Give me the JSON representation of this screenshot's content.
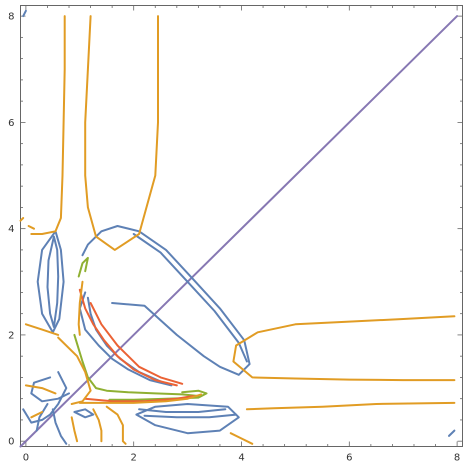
{
  "chart_data": {
    "type": "line",
    "title": "",
    "xlabel": "",
    "ylabel": "",
    "xlim": [
      -0.1,
      8.1
    ],
    "ylim": [
      -0.1,
      8.2
    ],
    "x_ticks": [
      0,
      2,
      4,
      6,
      8
    ],
    "y_ticks": [
      0,
      2,
      4,
      6,
      8
    ],
    "x_tick_labels": [
      "0",
      "2",
      "4",
      "6",
      "8"
    ],
    "y_tick_labels": [
      "0",
      "2",
      "4",
      "6",
      "8"
    ],
    "grid": false,
    "legend": "none",
    "colors": {
      "blue": "#5e81b5",
      "orange": "#e19c24",
      "green": "#8fb032",
      "red": "#eb6235",
      "purple": "#8778b3",
      "frame": "#666666"
    },
    "series": [
      {
        "color": "purple",
        "segments": [
          [
            [
              -0.1,
              -0.1
            ],
            [
              8.0,
              8.0
            ]
          ]
        ]
      },
      {
        "color": "blue",
        "segments": [
          [
            [
              0.55,
              3.95
            ],
            [
              0.3,
              3.6
            ],
            [
              0.22,
              3.0
            ],
            [
              0.3,
              2.4
            ],
            [
              0.5,
              2.05
            ],
            [
              0.62,
              2.3
            ],
            [
              0.7,
              3.0
            ],
            [
              0.65,
              3.6
            ],
            [
              0.55,
              3.95
            ]
          ],
          [
            [
              0.52,
              3.85
            ],
            [
              0.42,
              3.4
            ],
            [
              0.4,
              2.9
            ],
            [
              0.45,
              2.4
            ],
            [
              0.52,
              2.15
            ],
            [
              0.58,
              2.6
            ],
            [
              0.6,
              3.1
            ],
            [
              0.58,
              3.6
            ],
            [
              0.52,
              3.85
            ]
          ],
          [
            [
              1.1,
              2.8
            ],
            [
              1.0,
              2.5
            ],
            [
              1.1,
              2.1
            ],
            [
              1.35,
              1.8
            ],
            [
              1.6,
              1.55
            ],
            [
              1.9,
              1.35
            ],
            [
              2.3,
              1.15
            ],
            [
              2.7,
              1.05
            ]
          ],
          [
            [
              1.15,
              2.7
            ],
            [
              1.2,
              2.4
            ],
            [
              1.3,
              2.1
            ],
            [
              1.5,
              1.8
            ],
            [
              1.75,
              1.55
            ],
            [
              2.1,
              1.3
            ],
            [
              2.6,
              1.08
            ]
          ],
          [
            [
              1.05,
              3.5
            ],
            [
              1.15,
              3.7
            ],
            [
              1.4,
              3.95
            ],
            [
              1.7,
              4.05
            ],
            [
              2.1,
              3.95
            ],
            [
              2.6,
              3.6
            ],
            [
              3.1,
              3.05
            ],
            [
              3.6,
              2.5
            ],
            [
              4.05,
              1.9
            ],
            [
              4.15,
              1.45
            ],
            [
              3.95,
              1.25
            ],
            [
              3.6,
              1.4
            ],
            [
              3.3,
              1.6
            ],
            [
              2.8,
              2.0
            ],
            [
              2.2,
              2.55
            ],
            [
              1.6,
              2.6
            ]
          ],
          [
            [
              2.0,
              3.9
            ],
            [
              2.5,
              3.55
            ],
            [
              3.0,
              3.0
            ],
            [
              3.5,
              2.45
            ],
            [
              3.95,
              1.85
            ],
            [
              4.1,
              1.5
            ]
          ],
          [
            [
              0.45,
              1.2
            ],
            [
              0.15,
              1.1
            ],
            [
              0.1,
              0.9
            ],
            [
              0.3,
              0.75
            ],
            [
              0.6,
              0.8
            ],
            [
              0.8,
              0.9
            ]
          ],
          [
            [
              0.6,
              1.3
            ],
            [
              0.75,
              1.0
            ],
            [
              0.6,
              0.7
            ],
            [
              0.45,
              0.5
            ],
            [
              0.3,
              0.4
            ],
            [
              0.1,
              0.35
            ],
            [
              -0.05,
              0.6
            ]
          ],
          [
            [
              0.5,
              0.6
            ],
            [
              0.55,
              0.35
            ],
            [
              0.65,
              0.1
            ],
            [
              0.75,
              -0.05
            ]
          ],
          [
            [
              0.4,
              0.7
            ],
            [
              0.25,
              0.45
            ],
            [
              0.2,
              0.2
            ]
          ],
          [
            [
              0.9,
              0.55
            ],
            [
              1.1,
              0.45
            ],
            [
              1.25,
              0.5
            ],
            [
              1.1,
              0.6
            ],
            [
              0.9,
              0.55
            ]
          ],
          [
            [
              2.05,
              0.5
            ],
            [
              2.4,
              0.3
            ],
            [
              3.0,
              0.15
            ],
            [
              3.6,
              0.2
            ],
            [
              3.95,
              0.45
            ],
            [
              3.75,
              0.65
            ],
            [
              3.0,
              0.7
            ],
            [
              2.4,
              0.65
            ],
            [
              2.05,
              0.5
            ]
          ],
          [
            [
              2.2,
              0.48
            ],
            [
              2.8,
              0.45
            ],
            [
              3.4,
              0.45
            ],
            [
              3.9,
              0.5
            ]
          ],
          [
            [
              2.1,
              0.6
            ],
            [
              2.6,
              0.55
            ],
            [
              3.2,
              0.55
            ],
            [
              3.7,
              0.6
            ]
          ],
          [
            [
              -0.05,
              8.0
            ],
            [
              0.0,
              8.1
            ]
          ],
          [
            [
              7.85,
              0.1
            ],
            [
              7.95,
              0.2
            ]
          ]
        ]
      },
      {
        "color": "green",
        "segments": [
          [
            [
              0.98,
              3.1
            ],
            [
              1.05,
              3.35
            ],
            [
              1.15,
              3.45
            ],
            [
              1.1,
              3.2
            ]
          ],
          [
            [
              0.9,
              2.0
            ],
            [
              1.05,
              1.5
            ],
            [
              1.15,
              1.2
            ],
            [
              1.3,
              1.0
            ],
            [
              1.5,
              0.95
            ],
            [
              1.9,
              0.92
            ],
            [
              2.4,
              0.9
            ],
            [
              2.9,
              0.88
            ],
            [
              3.2,
              0.85
            ]
          ],
          [
            [
              1.55,
              0.78
            ],
            [
              2.0,
              0.78
            ],
            [
              2.6,
              0.8
            ],
            [
              3.2,
              0.82
            ],
            [
              3.35,
              0.9
            ],
            [
              3.2,
              0.95
            ],
            [
              2.9,
              0.92
            ]
          ]
        ]
      },
      {
        "color": "red",
        "segments": [
          [
            [
              1.0,
              2.85
            ],
            [
              1.1,
              2.5
            ],
            [
              1.25,
              2.2
            ],
            [
              1.45,
              1.9
            ],
            [
              1.7,
              1.6
            ],
            [
              2.0,
              1.35
            ],
            [
              2.4,
              1.15
            ],
            [
              2.8,
              1.05
            ]
          ],
          [
            [
              1.2,
              2.6
            ],
            [
              1.4,
              2.2
            ],
            [
              1.7,
              1.8
            ],
            [
              2.1,
              1.4
            ],
            [
              2.5,
              1.2
            ],
            [
              2.9,
              1.08
            ]
          ],
          [
            [
              1.1,
              0.8
            ],
            [
              1.6,
              0.75
            ],
            [
              2.2,
              0.75
            ],
            [
              2.8,
              0.8
            ],
            [
              3.1,
              0.85
            ]
          ]
        ]
      },
      {
        "color": "orange",
        "segments": [
          [
            [
              0.72,
              8.0
            ],
            [
              0.72,
              7.0
            ],
            [
              0.7,
              6.0
            ],
            [
              0.68,
              5.0
            ],
            [
              0.65,
              4.2
            ],
            [
              0.55,
              3.95
            ],
            [
              0.3,
              3.9
            ],
            [
              0.1,
              3.9
            ]
          ],
          [
            [
              1.2,
              8.0
            ],
            [
              1.15,
              7.0
            ],
            [
              1.1,
              6.0
            ],
            [
              1.1,
              5.0
            ],
            [
              1.15,
              4.4
            ],
            [
              1.3,
              3.85
            ],
            [
              1.65,
              3.6
            ],
            [
              2.1,
              3.9
            ],
            [
              2.4,
              5.0
            ],
            [
              2.45,
              6.0
            ],
            [
              2.45,
              7.0
            ],
            [
              2.45,
              8.0
            ]
          ],
          [
            [
              -0.1,
              4.15
            ],
            [
              -0.05,
              4.2
            ]
          ],
          [
            [
              0.05,
              4.05
            ],
            [
              0.15,
              4.0
            ]
          ],
          [
            [
              7.95,
              2.35
            ],
            [
              7.0,
              2.3
            ],
            [
              6.0,
              2.25
            ],
            [
              5.0,
              2.2
            ],
            [
              4.3,
              2.05
            ],
            [
              3.9,
              1.8
            ],
            [
              3.85,
              1.5
            ],
            [
              4.2,
              1.2
            ],
            [
              5.0,
              1.18
            ],
            [
              6.0,
              1.16
            ],
            [
              7.0,
              1.15
            ],
            [
              7.95,
              1.15
            ]
          ],
          [
            [
              0.0,
              2.2
            ],
            [
              0.3,
              2.1
            ],
            [
              0.6,
              2.0
            ]
          ],
          [
            [
              0.6,
              1.95
            ],
            [
              0.95,
              1.6
            ],
            [
              1.1,
              1.3
            ],
            [
              1.2,
              0.95
            ],
            [
              1.05,
              0.75
            ],
            [
              0.85,
              0.7
            ]
          ],
          [
            [
              0.0,
              1.05
            ],
            [
              0.3,
              1.0
            ],
            [
              0.55,
              0.9
            ]
          ],
          [
            [
              1.0,
              0.72
            ],
            [
              1.4,
              0.72
            ],
            [
              2.0,
              0.72
            ],
            [
              2.6,
              0.75
            ],
            [
              3.0,
              0.8
            ],
            [
              3.25,
              0.88
            ]
          ],
          [
            [
              1.5,
              0.65
            ],
            [
              1.7,
              0.5
            ],
            [
              1.8,
              0.3
            ],
            [
              1.8,
              0.0
            ],
            [
              1.85,
              -0.05
            ]
          ],
          [
            [
              1.25,
              0.6
            ],
            [
              1.35,
              0.4
            ],
            [
              1.4,
              0.2
            ],
            [
              1.4,
              0.0
            ]
          ],
          [
            [
              0.85,
              0.45
            ],
            [
              0.9,
              0.2
            ],
            [
              0.95,
              0.0
            ]
          ],
          [
            [
              4.1,
              0.6
            ],
            [
              4.6,
              0.62
            ],
            [
              5.5,
              0.65
            ],
            [
              6.5,
              0.7
            ],
            [
              7.95,
              0.72
            ]
          ],
          [
            [
              3.8,
              0.15
            ],
            [
              4.0,
              0.05
            ],
            [
              4.2,
              -0.05
            ]
          ],
          [
            [
              0.3,
              0.55
            ],
            [
              0.1,
              0.45
            ]
          ],
          [
            [
              1.05,
              3.0
            ],
            [
              1.0,
              2.6
            ],
            [
              0.98,
              2.2
            ],
            [
              1.0,
              2.0
            ]
          ]
        ]
      }
    ]
  }
}
